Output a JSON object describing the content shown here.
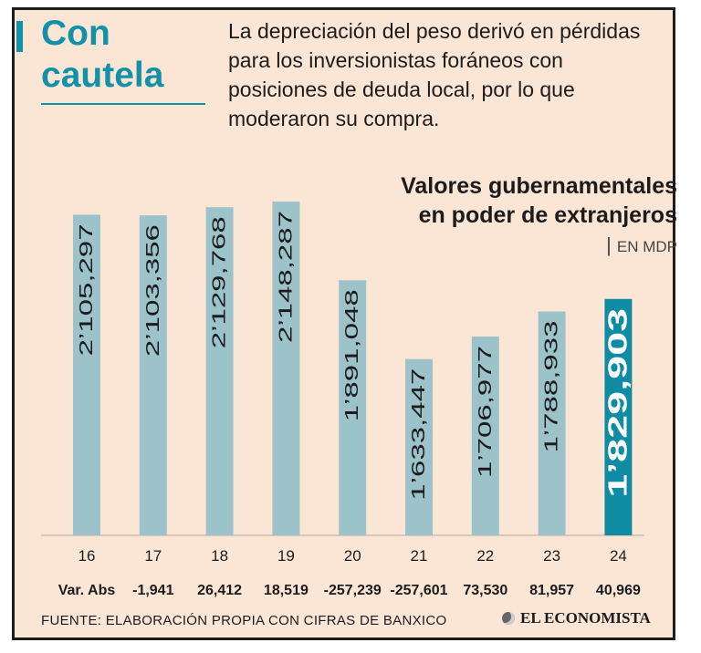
{
  "header": {
    "title": "Con cautela",
    "subtitle": "La depreciación del peso derivó en pérdidas para los inversionistas foráneos con posiciones de deuda local, por lo que moderaron su compra."
  },
  "chart_data": {
    "type": "bar",
    "title": "Valores gubernamentales en poder de extranjeros",
    "unit": "EN MDP",
    "categories": [
      "16",
      "17",
      "18",
      "19",
      "20",
      "21",
      "22",
      "23",
      "24"
    ],
    "values": [
      2105297,
      2103356,
      2129768,
      2148287,
      1891048,
      1633447,
      1706977,
      1788933,
      1829903
    ],
    "value_labels": [
      "2’105,297",
      "2’103,356",
      "2’129,768",
      "2’148,287",
      "1’891,048",
      "1’633,447",
      "1’706,977",
      "1’788,933",
      "1’829,903"
    ],
    "var_abs_label": "Var. Abs",
    "var_abs": [
      "-1,941",
      "26,412",
      "18,519",
      "-257,239",
      "-257,601",
      "73,530",
      "81,957",
      "40,969"
    ],
    "highlight_index": 8,
    "colors": {
      "bar": "#9dc3ca",
      "highlight": "#0f8ba4",
      "text": "#1c1c1c"
    },
    "ylim": [
      1400000,
      2200000
    ]
  },
  "footer": {
    "source": "FUENTE: ELABORACIÓN PROPIA CON CIFRAS DE BANXICO",
    "brand": "EL ECONOMISTA"
  }
}
